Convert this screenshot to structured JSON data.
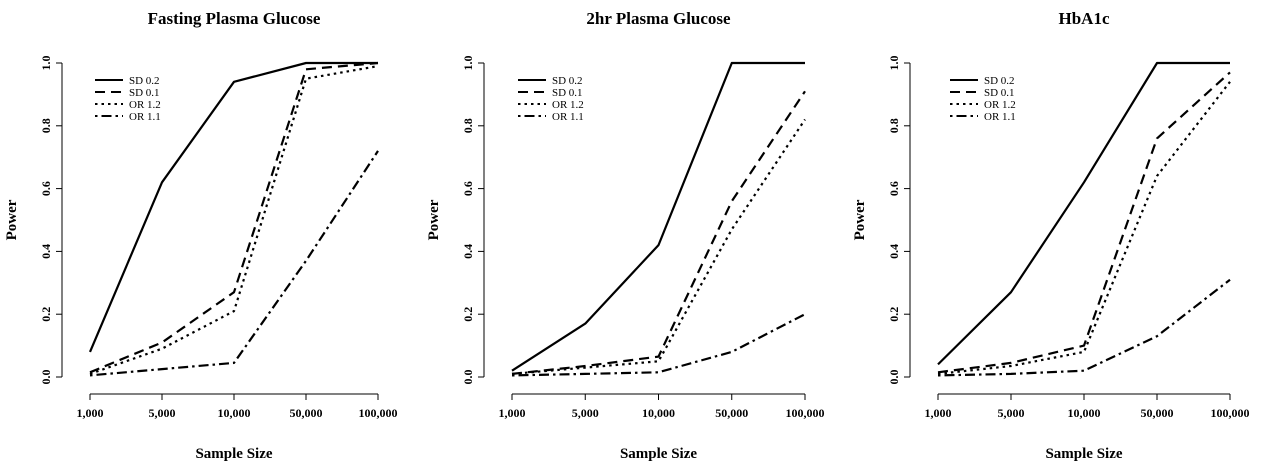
{
  "chart_data": [
    {
      "type": "line",
      "title": "Fasting Plasma Glucose",
      "xlabel": "Sample Size",
      "ylabel": "Power",
      "categories": [
        "1,000",
        "5,000",
        "10,000",
        "50,000",
        "100,000"
      ],
      "ylim": [
        0,
        1
      ],
      "yticks": [
        "0.0",
        "0.2",
        "0.4",
        "0.6",
        "0.8",
        "1.0"
      ],
      "legend": "top-left",
      "grid": false,
      "series": [
        {
          "name": "SD 0.2",
          "values": [
            0.08,
            0.62,
            0.94,
            1.0,
            1.0
          ]
        },
        {
          "name": "SD 0.1",
          "values": [
            0.015,
            0.11,
            0.27,
            0.98,
            1.0
          ]
        },
        {
          "name": "OR 1.2",
          "values": [
            0.01,
            0.09,
            0.21,
            0.95,
            0.99
          ]
        },
        {
          "name": "OR 1.1",
          "values": [
            0.005,
            0.025,
            0.045,
            0.37,
            0.72
          ]
        }
      ]
    },
    {
      "type": "line",
      "title": "2hr Plasma Glucose",
      "xlabel": "Sample Size",
      "ylabel": "Power",
      "categories": [
        "1,000",
        "5,000",
        "10,000",
        "50,000",
        "100,000"
      ],
      "ylim": [
        0,
        1
      ],
      "yticks": [
        "0.0",
        "0.2",
        "0.4",
        "0.6",
        "0.8",
        "1.0"
      ],
      "legend": "top-left",
      "grid": false,
      "series": [
        {
          "name": "SD 0.2",
          "values": [
            0.02,
            0.17,
            0.42,
            1.0,
            1.0
          ]
        },
        {
          "name": "SD 0.1",
          "values": [
            0.01,
            0.035,
            0.065,
            0.56,
            0.91
          ]
        },
        {
          "name": "OR 1.2",
          "values": [
            0.01,
            0.03,
            0.05,
            0.47,
            0.82
          ]
        },
        {
          "name": "OR 1.1",
          "values": [
            0.005,
            0.01,
            0.015,
            0.08,
            0.2
          ]
        }
      ]
    },
    {
      "type": "line",
      "title": "HbA1c",
      "xlabel": "Sample Size",
      "ylabel": "Power",
      "categories": [
        "1,000",
        "5,000",
        "10,000",
        "50,000",
        "100,000"
      ],
      "ylim": [
        0,
        1
      ],
      "yticks": [
        "0.0",
        "0.2",
        "0.4",
        "0.6",
        "0.8",
        "1.0"
      ],
      "legend": "top-left",
      "grid": false,
      "series": [
        {
          "name": "SD 0.2",
          "values": [
            0.04,
            0.27,
            0.62,
            1.0,
            1.0
          ]
        },
        {
          "name": "SD 0.1",
          "values": [
            0.015,
            0.045,
            0.1,
            0.76,
            0.97
          ]
        },
        {
          "name": "OR 1.2",
          "values": [
            0.01,
            0.035,
            0.08,
            0.64,
            0.94
          ]
        },
        {
          "name": "OR 1.1",
          "values": [
            0.005,
            0.01,
            0.02,
            0.13,
            0.31
          ]
        }
      ]
    }
  ],
  "line_styles": [
    "solid",
    "dashed",
    "dotted",
    "dotdash"
  ],
  "line_color": "#000000"
}
